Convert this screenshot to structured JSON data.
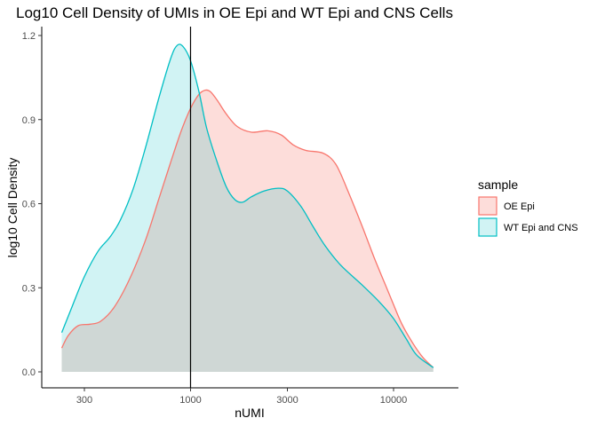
{
  "chart_data": {
    "type": "area",
    "title": "Log10 Cell Density of UMIs in OE Epi and WT Epi and CNS Cells",
    "xlabel": "nUMI",
    "ylabel": "log10 Cell Density",
    "x_scale": "log10",
    "xlim": [
      210,
      20000
    ],
    "ylim": [
      0,
      1.2
    ],
    "x_ticks": [
      {
        "value": 300,
        "label": "300"
      },
      {
        "value": 1000,
        "label": "1000"
      },
      {
        "value": 3000,
        "label": "3000"
      },
      {
        "value": 10000,
        "label": "10000"
      }
    ],
    "y_ticks": [
      {
        "value": 0.0,
        "label": "0.0"
      },
      {
        "value": 0.3,
        "label": "0.3"
      },
      {
        "value": 0.6,
        "label": "0.6"
      },
      {
        "value": 0.9,
        "label": "0.9"
      },
      {
        "value": 1.2,
        "label": "1.2"
      }
    ],
    "vline": {
      "x": 1000,
      "color": "#000000"
    },
    "grid": false,
    "legend": {
      "title": "sample",
      "position": "right"
    },
    "series": [
      {
        "name": "OE Epi",
        "line_color": "#F8766D",
        "fill_color": "#F8766D",
        "fill_opacity": 0.25,
        "points": [
          [
            232,
            0.085
          ],
          [
            250,
            0.13
          ],
          [
            280,
            0.165
          ],
          [
            320,
            0.17
          ],
          [
            360,
            0.18
          ],
          [
            420,
            0.23
          ],
          [
            500,
            0.33
          ],
          [
            600,
            0.47
          ],
          [
            700,
            0.62
          ],
          [
            800,
            0.75
          ],
          [
            900,
            0.86
          ],
          [
            1000,
            0.94
          ],
          [
            1100,
            0.99
          ],
          [
            1180,
            1.005
          ],
          [
            1250,
            1.0
          ],
          [
            1350,
            0.97
          ],
          [
            1500,
            0.92
          ],
          [
            1700,
            0.875
          ],
          [
            2000,
            0.855
          ],
          [
            2400,
            0.86
          ],
          [
            2800,
            0.845
          ],
          [
            3200,
            0.81
          ],
          [
            3700,
            0.79
          ],
          [
            4500,
            0.78
          ],
          [
            5200,
            0.74
          ],
          [
            6000,
            0.64
          ],
          [
            7000,
            0.52
          ],
          [
            8000,
            0.41
          ],
          [
            9000,
            0.32
          ],
          [
            10000,
            0.24
          ],
          [
            11000,
            0.17
          ],
          [
            12500,
            0.1
          ],
          [
            14000,
            0.05
          ],
          [
            15700,
            0.015
          ]
        ]
      },
      {
        "name": "WT Epi and CNS",
        "line_color": "#00BFC4",
        "fill_color": "#00BFC4",
        "fill_opacity": 0.18,
        "points": [
          [
            232,
            0.14
          ],
          [
            260,
            0.23
          ],
          [
            300,
            0.34
          ],
          [
            350,
            0.43
          ],
          [
            400,
            0.48
          ],
          [
            450,
            0.54
          ],
          [
            520,
            0.65
          ],
          [
            600,
            0.8
          ],
          [
            700,
            0.98
          ],
          [
            800,
            1.12
          ],
          [
            860,
            1.165
          ],
          [
            920,
            1.16
          ],
          [
            1000,
            1.11
          ],
          [
            1100,
            1.0
          ],
          [
            1200,
            0.87
          ],
          [
            1350,
            0.75
          ],
          [
            1500,
            0.66
          ],
          [
            1650,
            0.615
          ],
          [
            1800,
            0.605
          ],
          [
            2000,
            0.625
          ],
          [
            2300,
            0.645
          ],
          [
            2700,
            0.655
          ],
          [
            3000,
            0.645
          ],
          [
            3500,
            0.59
          ],
          [
            4000,
            0.52
          ],
          [
            4600,
            0.45
          ],
          [
            5500,
            0.38
          ],
          [
            7000,
            0.31
          ],
          [
            8500,
            0.25
          ],
          [
            10000,
            0.19
          ],
          [
            11500,
            0.12
          ],
          [
            13000,
            0.06
          ],
          [
            15700,
            0.015
          ]
        ]
      }
    ]
  }
}
